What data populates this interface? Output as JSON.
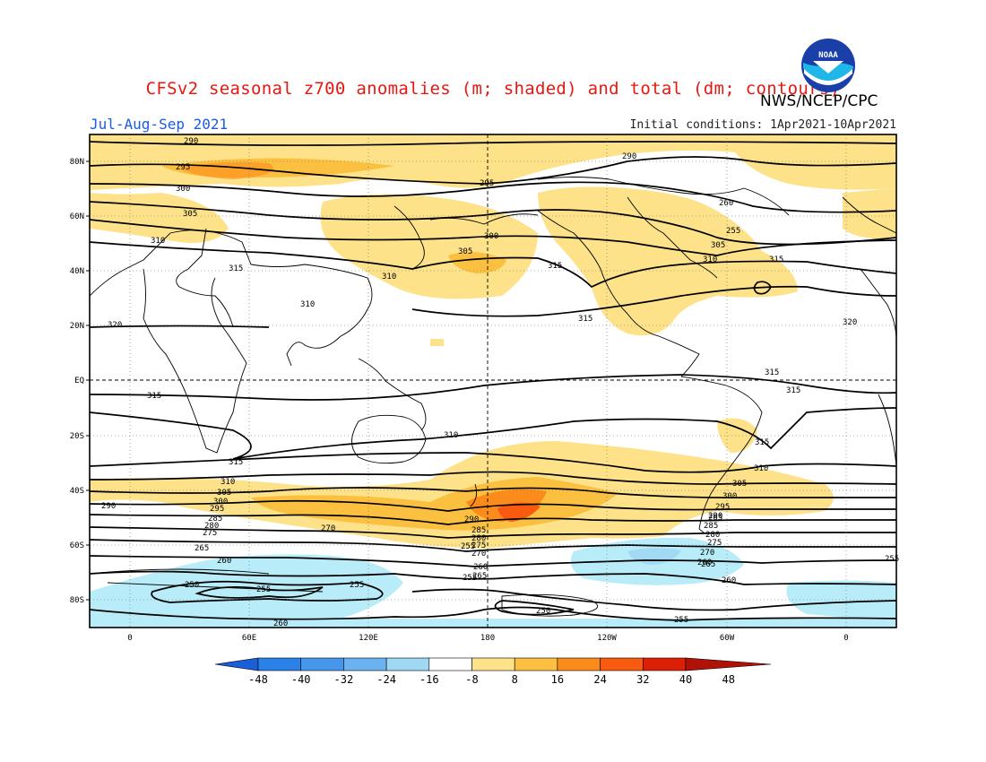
{
  "title": "CFSv2 seasonal z700 anomalies (m; shaded) and total (dm; contours)",
  "organization": "NWS/NCEP/CPC",
  "logo_text": "NOAA",
  "period": "Jul-Aug-Sep 2021",
  "initial_conditions": "Initial conditions: 1Apr2021-10Apr2021",
  "lat_labels": [
    "80N",
    "60N",
    "40N",
    "20N",
    "EQ",
    "20S",
    "40S",
    "60S",
    "80S"
  ],
  "lon_labels": [
    "0",
    "60E",
    "120E",
    "180",
    "120W",
    "60W",
    "0"
  ],
  "colorbar": {
    "ticks": [
      "-48",
      "-40",
      "-32",
      "-24",
      "-16",
      "-8",
      "8",
      "16",
      "24",
      "32",
      "40",
      "48"
    ],
    "colors": [
      "#1e6ee6",
      "#2a82e8",
      "#4696ec",
      "#6cb2f0",
      "#a0d8f4",
      "#ffffff",
      "#fde28a",
      "#fbc040",
      "#fb8c1c",
      "#f85a10",
      "#dc2008",
      "#b81408"
    ],
    "end_low": "#1a5fd8",
    "end_high": "#b01208"
  },
  "anomaly_colors": {
    "low": "#b8ecf8",
    "mid_low": "#8cc8f0",
    "high": "#fde28a",
    "mid_high": "#fbc040",
    "peak": "#fb8c1c",
    "max": "#f85a10"
  },
  "contour_labels": [
    "290",
    "295",
    "300",
    "305",
    "310",
    "315",
    "310",
    "320",
    "290",
    "295",
    "300",
    "305",
    "310",
    "315",
    "315",
    "320",
    "315",
    "315",
    "310",
    "315",
    "310",
    "305",
    "300",
    "295",
    "290",
    "285",
    "280",
    "275",
    "270",
    "265",
    "260",
    "255",
    "250",
    "255",
    "260",
    "265",
    "255",
    "260",
    "290",
    "285",
    "280",
    "275",
    "270",
    "265",
    "260",
    "255",
    "250",
    "255",
    "260",
    "305",
    "310",
    "315",
    "300",
    "295",
    "290",
    "285",
    "280",
    "275",
    "270",
    "265",
    "255",
    "260",
    "255",
    "315",
    "310",
    "305",
    "315"
  ]
}
